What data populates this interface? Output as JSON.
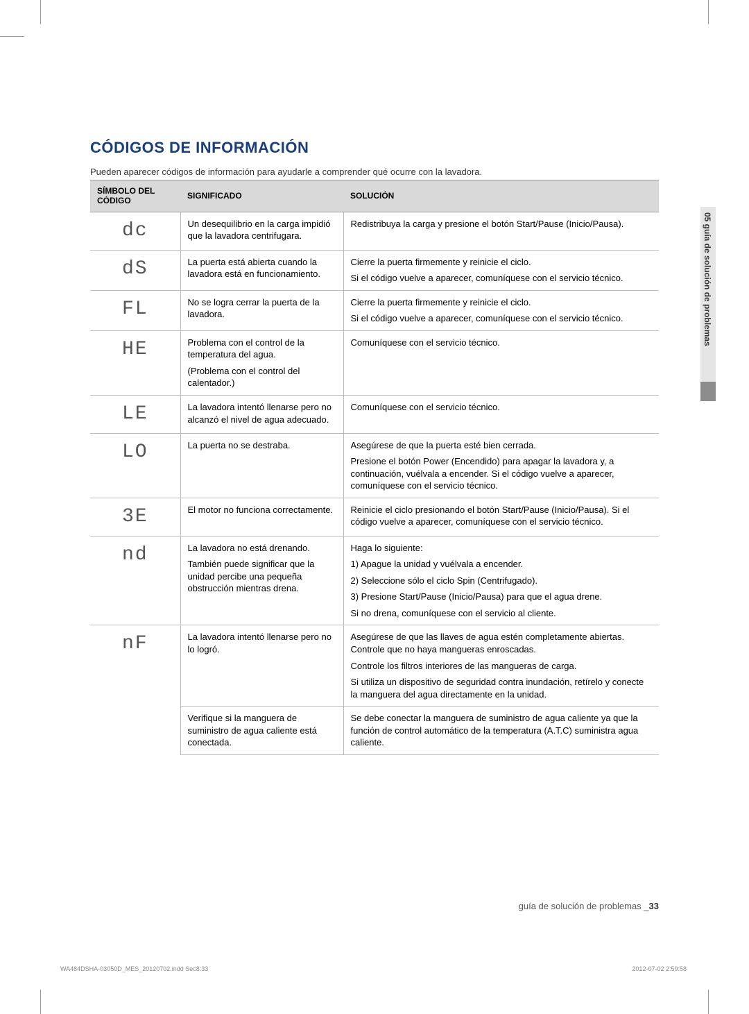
{
  "section_title": "CÓDIGOS DE INFORMACIÓN",
  "intro": "Pueden aparecer códigos de información para ayudarle a comprender qué ocurre con la lavadora.",
  "side_tab": "05 guía de solución de problemas",
  "footer_right_text": "guía de solución de problemas _",
  "footer_right_page": "33",
  "footer_file": "WA484DSHA-03050D_MES_20120702.indd   Sec8:33",
  "footer_timestamp": "2012-07-02     2:59:58",
  "table": {
    "headers": [
      "SÍMBOLO DEL CÓDIGO",
      "SIGNIFICADO",
      "SOLUCIÓN"
    ],
    "rows": [
      {
        "symbol": "dc",
        "meaning": [
          "Un desequilibrio en la carga impidió que la lavadora centrifugara."
        ],
        "solution": [
          "Redistribuya la carga y presione el botón Start/Pause (Inicio/Pausa)."
        ]
      },
      {
        "symbol": "dS",
        "meaning": [
          "La puerta está abierta cuando la lavadora está en funcionamiento."
        ],
        "solution": [
          "Cierre la puerta firmemente y reinicie el ciclo.",
          "Si el código vuelve a aparecer, comuníquese con el servicio técnico."
        ]
      },
      {
        "symbol": "FL",
        "meaning": [
          "No se logra cerrar la puerta de la lavadora."
        ],
        "solution": [
          "Cierre la puerta firmemente y reinicie el ciclo.",
          "Si el código vuelve a aparecer, comuníquese con el servicio técnico."
        ]
      },
      {
        "symbol": "HE",
        "meaning": [
          "Problema con el control de la temperatura del agua.",
          "(Problema con el control del calentador.)"
        ],
        "solution": [
          "Comuníquese con el servicio técnico."
        ]
      },
      {
        "symbol": "LE",
        "meaning": [
          "La lavadora intentó llenarse pero no alcanzó el nivel de agua adecuado."
        ],
        "solution": [
          "Comuníquese con el servicio técnico."
        ]
      },
      {
        "symbol": "LO",
        "meaning": [
          "La puerta no se destraba."
        ],
        "solution": [
          "Asegúrese de que la puerta esté bien cerrada.",
          "Presione el botón Power (Encendido) para apagar la lavadora y, a continuación, vuélvala a encender. Si el código vuelve a aparecer, comuníquese con el servicio técnico."
        ]
      },
      {
        "symbol": "3E",
        "meaning": [
          "El motor no funciona correctamente."
        ],
        "solution": [
          "Reinicie el ciclo presionando el botón Start/Pause (Inicio/Pausa). Si el código vuelve a aparecer, comuníquese con el servicio técnico."
        ]
      },
      {
        "symbol": "nd",
        "meaning": [
          "La lavadora no está drenando.",
          "También puede significar que la unidad percibe una pequeña obstrucción mientras drena."
        ],
        "solution": [
          "Haga lo siguiente:",
          "1) Apague la unidad y vuélvala a encender.",
          "2) Seleccione sólo el ciclo Spin (Centrifugado).",
          "3) Presione Start/Pause (Inicio/Pausa) para que el agua drene.",
          "Si no drena, comuníquese con el servicio al cliente."
        ]
      },
      {
        "symbol": "nF",
        "rowspan": 2,
        "meaning": [
          "La lavadora intentó llenarse pero no lo logró."
        ],
        "solution": [
          "Asegúrese de que las llaves de agua estén completamente abiertas. Controle que no haya mangueras enroscadas.",
          "Controle los filtros interiores de las mangueras de carga.",
          "Si utiliza un dispositivo de seguridad contra inundación, retírelo y conecte la manguera del agua directamente en la unidad."
        ]
      },
      {
        "continuation": true,
        "meaning": [
          "Verifique si la manguera de suministro de agua caliente está conectada."
        ],
        "solution": [
          "Se debe conectar la manguera de suministro de agua caliente ya que la función de control automático de la temperatura (A.T.C) suministra agua caliente."
        ]
      }
    ]
  },
  "colors": {
    "title": "#1a3e7a",
    "header_bg": "#d9d9d9",
    "border": "#bbbbbb",
    "side_tab_bg": "#e5e5e5",
    "side_tab_dark": "#8c8c8c"
  }
}
